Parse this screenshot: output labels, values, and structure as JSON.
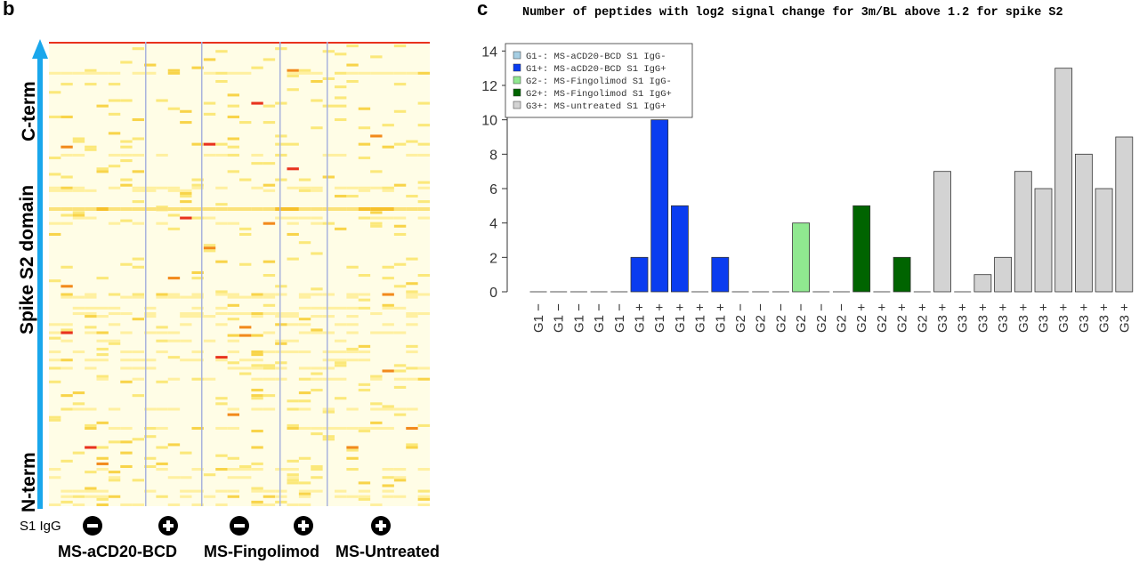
{
  "panel_b": {
    "letter": "b",
    "axis_top_label": "C-term",
    "axis_mid_label": "Spike S2 domain",
    "axis_bottom_label": "N-term",
    "s1igg_label": "S1 IgG",
    "signs": [
      "minus",
      "plus",
      "minus",
      "plus",
      "plus"
    ],
    "groups": [
      "MS-aCD20-BCD",
      "MS-Fingolimod",
      "MS-Untreated"
    ],
    "arrow_color": "#1aa7ec"
  },
  "panel_c": {
    "letter": "c",
    "title": "Number of peptides with log2 signal change for 3m/BL above 1.2 for spike S2"
  },
  "chart_data": {
    "type": "bar",
    "title": "Number of peptides with log2 signal change for 3m/BL above 1.2 for spike S2",
    "xlabel": "",
    "ylabel": "",
    "ylim": [
      0,
      15
    ],
    "yticks": [
      0,
      2,
      4,
      6,
      8,
      10,
      12,
      14
    ],
    "legend_position": "top-left",
    "legend": [
      {
        "key": "G1-",
        "label": "G1-: MS-aCD20-BCD S1 IgG-",
        "color": "#a6cee3"
      },
      {
        "key": "G1+",
        "label": "G1+: MS-aCD20-BCD S1 IgG+",
        "color": "#0a3cf0"
      },
      {
        "key": "G2-",
        "label": "G2-: MS-Fingolimod S1 IgG-",
        "color": "#90e890"
      },
      {
        "key": "G2+",
        "label": "G2+: MS-Fingolimod S1 IgG+",
        "color": "#006400"
      },
      {
        "key": "G3+",
        "label": "G3+: MS-untreated S1 IgG+",
        "color": "#d3d3d3"
      }
    ],
    "categories": [
      "G1 −",
      "G1 −",
      "G1 −",
      "G1 −",
      "G1 −",
      "G1 +",
      "G1 +",
      "G1 +",
      "G1 +",
      "G1 +",
      "G2 −",
      "G2 −",
      "G2 −",
      "G2 −",
      "G2 −",
      "G2 −",
      "G2 +",
      "G2 +",
      "G2 +",
      "G2 +",
      "G3 +",
      "G3 +",
      "G3 +",
      "G3 +",
      "G3 +",
      "G3 +",
      "G3 +",
      "G3 +",
      "G3 +",
      "G3 +"
    ],
    "groups": [
      "G1-",
      "G1-",
      "G1-",
      "G1-",
      "G1-",
      "G1+",
      "G1+",
      "G1+",
      "G1+",
      "G1+",
      "G2-",
      "G2-",
      "G2-",
      "G2-",
      "G2-",
      "G2-",
      "G2+",
      "G2+",
      "G2+",
      "G2+",
      "G3+",
      "G3+",
      "G3+",
      "G3+",
      "G3+",
      "G3+",
      "G3+",
      "G3+",
      "G3+",
      "G3+"
    ],
    "values": [
      0,
      0,
      0,
      0,
      0,
      2,
      10,
      5,
      0,
      2,
      0,
      0,
      0,
      4,
      0,
      0,
      5,
      0,
      2,
      0,
      7,
      0,
      1,
      2,
      7,
      6,
      13,
      8,
      6,
      9
    ]
  }
}
